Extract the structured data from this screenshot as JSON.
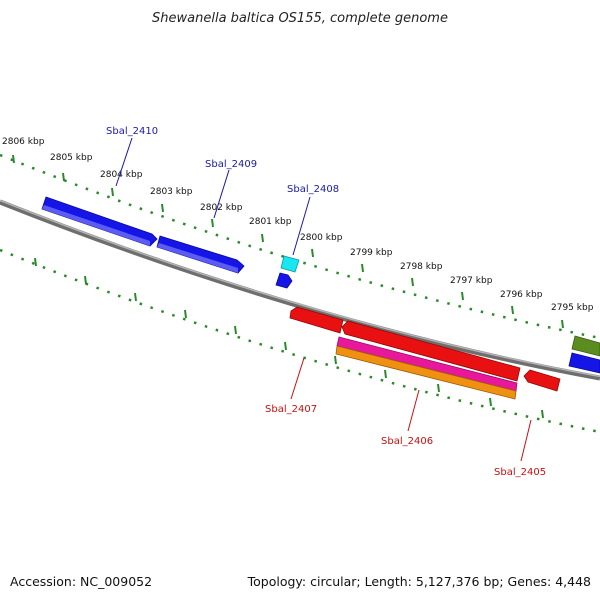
{
  "title": "Shewanella baltica OS155, complete genome",
  "footer": {
    "accession": "Accession: NC_009052",
    "topology": "Topology: circular; Length: 5,127,376 bp; Genes: 4,448"
  },
  "ruler": {
    "labels": [
      "2806 kbp",
      "2805 kbp",
      "2804 kbp",
      "2803 kbp",
      "2802 kbp",
      "2801 kbp",
      "2800 kbp",
      "2799 kbp",
      "2798 kbp",
      "2797 kbp",
      "2796 kbp",
      "2795 kbp"
    ]
  },
  "gene_labels": {
    "forward": [
      "Sbal_2410",
      "Sbal_2409",
      "Sbal_2408"
    ],
    "reverse": [
      "Sbal_2407",
      "Sbal_2406",
      "Sbal_2405"
    ]
  },
  "colors": {
    "forward_label": "#1a1aa8",
    "reverse_label": "#c81010",
    "backbone": "#808080",
    "ruler": "#2a8a2a",
    "gene_blue": "#1515e8",
    "gene_cyan": "#18e6f0",
    "gene_red": "#e81010",
    "gene_magenta": "#e8189a",
    "gene_orange": "#f09010",
    "gene_olive": "#5a8c20"
  }
}
